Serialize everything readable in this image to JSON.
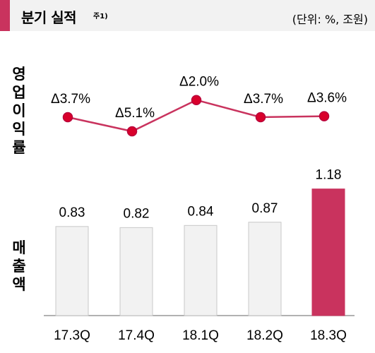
{
  "header": {
    "title": "분기 실적",
    "footnote": "주1)",
    "unit": "(단위: %, 조원)",
    "accent_color": "#c9335e"
  },
  "labels": {
    "operating_margin": [
      "영",
      "업",
      "이",
      "익",
      "률"
    ],
    "sales": [
      "매",
      "출",
      "액"
    ]
  },
  "chart_data": [
    {
      "type": "line",
      "categories": [
        "17.3Q",
        "17.4Q",
        "18.1Q",
        "18.2Q",
        "18.3Q"
      ],
      "values": [
        -3.7,
        -5.1,
        -2.0,
        -3.7,
        -3.6
      ],
      "data_labels": [
        "Δ3.7%",
        "Δ5.1%",
        "Δ2.0%",
        "Δ3.7%",
        "Δ3.6%"
      ],
      "ylabel": "영업이익률",
      "color": "#c9335e",
      "marker_color": "#d9002b",
      "grid": false
    },
    {
      "type": "bar",
      "categories": [
        "17.3Q",
        "17.4Q",
        "18.1Q",
        "18.2Q",
        "18.3Q"
      ],
      "values": [
        0.83,
        0.82,
        0.84,
        0.87,
        1.18
      ],
      "data_labels": [
        "0.83",
        "0.82",
        "0.84",
        "0.87",
        "1.18"
      ],
      "ylabel": "매출액",
      "bar_color": "#f2f2f2",
      "bar_border": "#c8c8c8",
      "highlight_color": "#c9335e",
      "highlight_index": 4,
      "grid": false
    }
  ]
}
